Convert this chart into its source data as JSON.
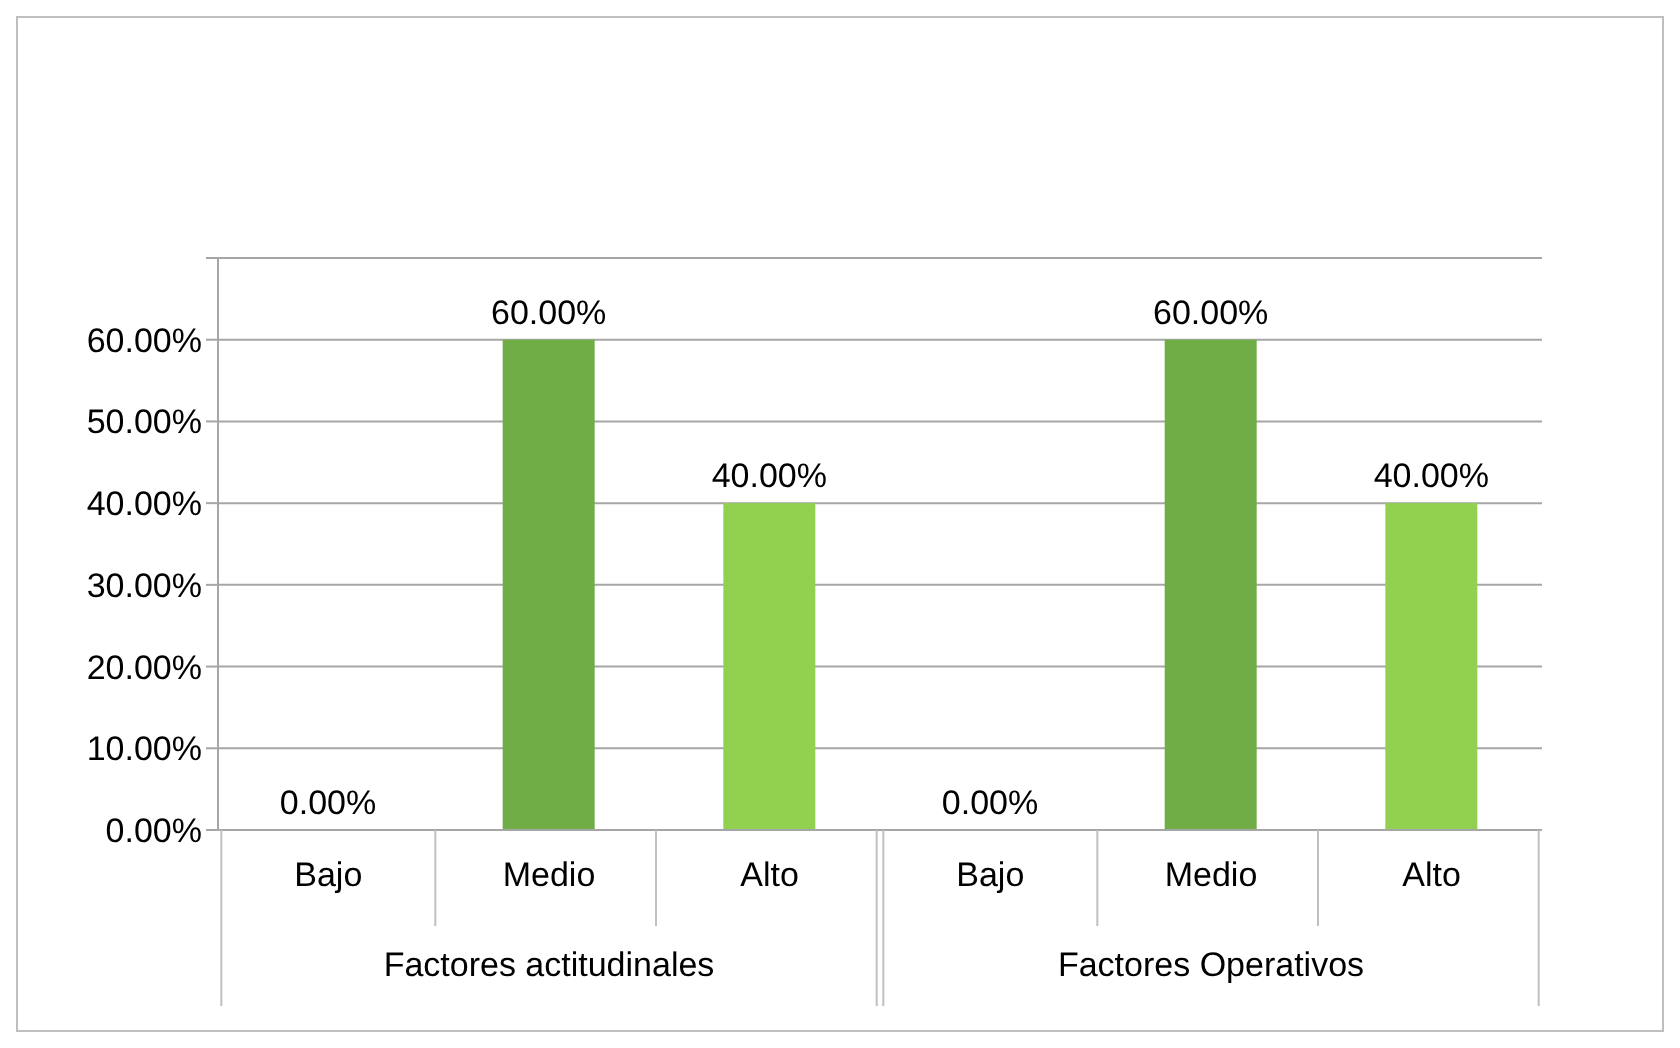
{
  "chart_data": {
    "type": "bar",
    "categories": [
      "Bajo",
      "Medio",
      "Alto",
      "Bajo",
      "Medio",
      "Alto"
    ],
    "values": [
      0,
      60,
      40,
      0,
      60,
      40
    ],
    "colors": [
      "#a50021",
      "#70ad47",
      "#92d050",
      "#a50021",
      "#70ad47",
      "#92d050"
    ],
    "value_labels": [
      "0.00%",
      "60.00%",
      "40.00%",
      "0.00%",
      "60.00%",
      "40.00%"
    ],
    "ylim": [
      0,
      70
    ],
    "yticks": [
      {
        "value": 0,
        "label": "0.00%"
      },
      {
        "value": 10,
        "label": "10.00%"
      },
      {
        "value": 20,
        "label": "20.00%"
      },
      {
        "value": 30,
        "label": "30.00%"
      },
      {
        "value": 40,
        "label": "40.00%"
      },
      {
        "value": 50,
        "label": "50.00%"
      },
      {
        "value": 60,
        "label": "60.00%"
      },
      {
        "value": 70,
        "label": null
      }
    ],
    "grid": "y",
    "annotations": [
      "Factores actitudinales",
      "Factores Operativos"
    ]
  }
}
